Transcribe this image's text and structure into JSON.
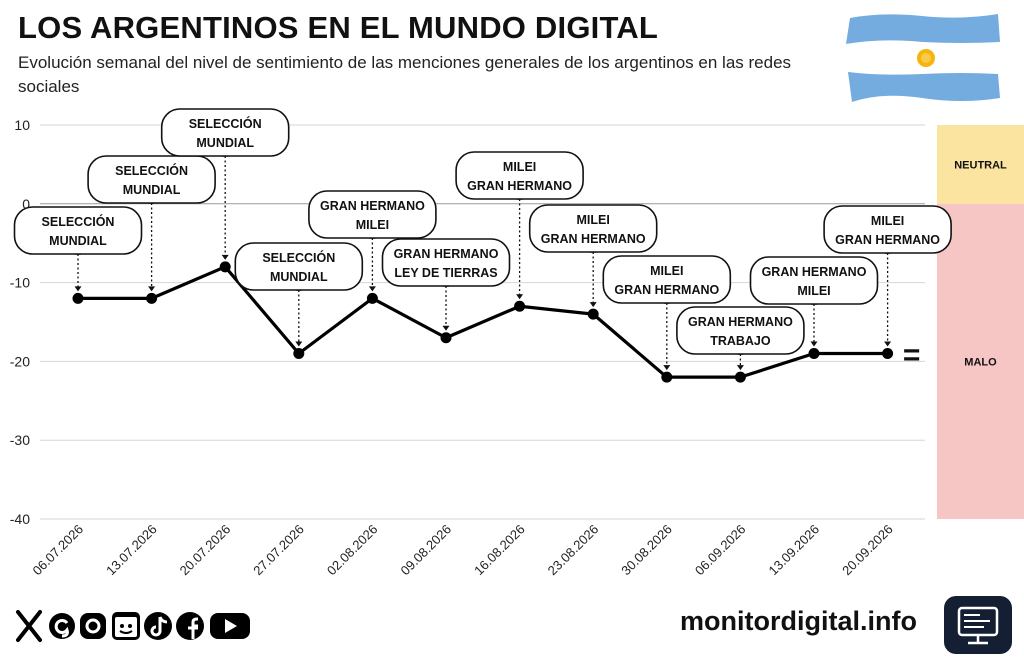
{
  "title": "LOS ARGENTINOS EN EL MUNDO DIGITAL",
  "subtitle": "Evolución semanal del nivel de sentimiento de las menciones generales de los argentinos en las redes sociales",
  "footer": {
    "url": "monitordigital.info"
  },
  "social_icons": [
    "x-icon",
    "threads-icon",
    "instagram-icon",
    "calendar-face-icon",
    "tiktok-icon",
    "facebook-icon",
    "youtube-icon"
  ],
  "colors": {
    "line": "#000000",
    "neutral_band": "#fbe3a0",
    "bad_band": "#f5c6c4",
    "flag_blue": "#74acdf",
    "sun": "#f6b40e"
  },
  "chart_data": {
    "type": "line",
    "title": "LOS ARGENTINOS EN EL MUNDO DIGITAL",
    "x": [
      "06.07.2026",
      "13.07.2026",
      "20.07.2026",
      "27.07.2026",
      "02.08.2026",
      "09.08.2026",
      "16.08.2026",
      "23.08.2026",
      "30.08.2026",
      "06.09.2026",
      "13.09.2026",
      "20.09.2026"
    ],
    "values": [
      -12,
      -12,
      -8,
      -19,
      -12,
      -17,
      -13,
      -14,
      -22,
      -22,
      -19,
      -19
    ],
    "annotations": [
      [
        "SELECCIÓN",
        "MUNDIAL"
      ],
      [
        "SELECCIÓN",
        "MUNDIAL"
      ],
      [
        "SELECCIÓN",
        "MUNDIAL"
      ],
      [
        "SELECCIÓN",
        "MUNDIAL"
      ],
      [
        "GRAN HERMANO",
        "MILEI"
      ],
      [
        "GRAN HERMANO",
        "LEY DE TIERRAS"
      ],
      [
        "MILEI",
        "GRAN HERMANO"
      ],
      [
        "MILEI",
        "GRAN HERMANO"
      ],
      [
        "MILEI",
        "GRAN HERMANO"
      ],
      [
        "GRAN HERMANO",
        "TRABAJO"
      ],
      [
        "GRAN HERMANO",
        "MILEI"
      ],
      [
        "MILEI",
        "GRAN HERMANO"
      ]
    ],
    "yticks": [
      10,
      0,
      -10,
      -20,
      -30,
      -40
    ],
    "ylim": [
      -40,
      10
    ],
    "grid": true,
    "trend_symbol": "=",
    "bands": [
      {
        "label": "NEUTRAL",
        "from": 0,
        "to": 10,
        "color": "#fbe3a0"
      },
      {
        "label": "MALO",
        "from": -40,
        "to": 0,
        "color": "#f5c6c4"
      }
    ]
  }
}
